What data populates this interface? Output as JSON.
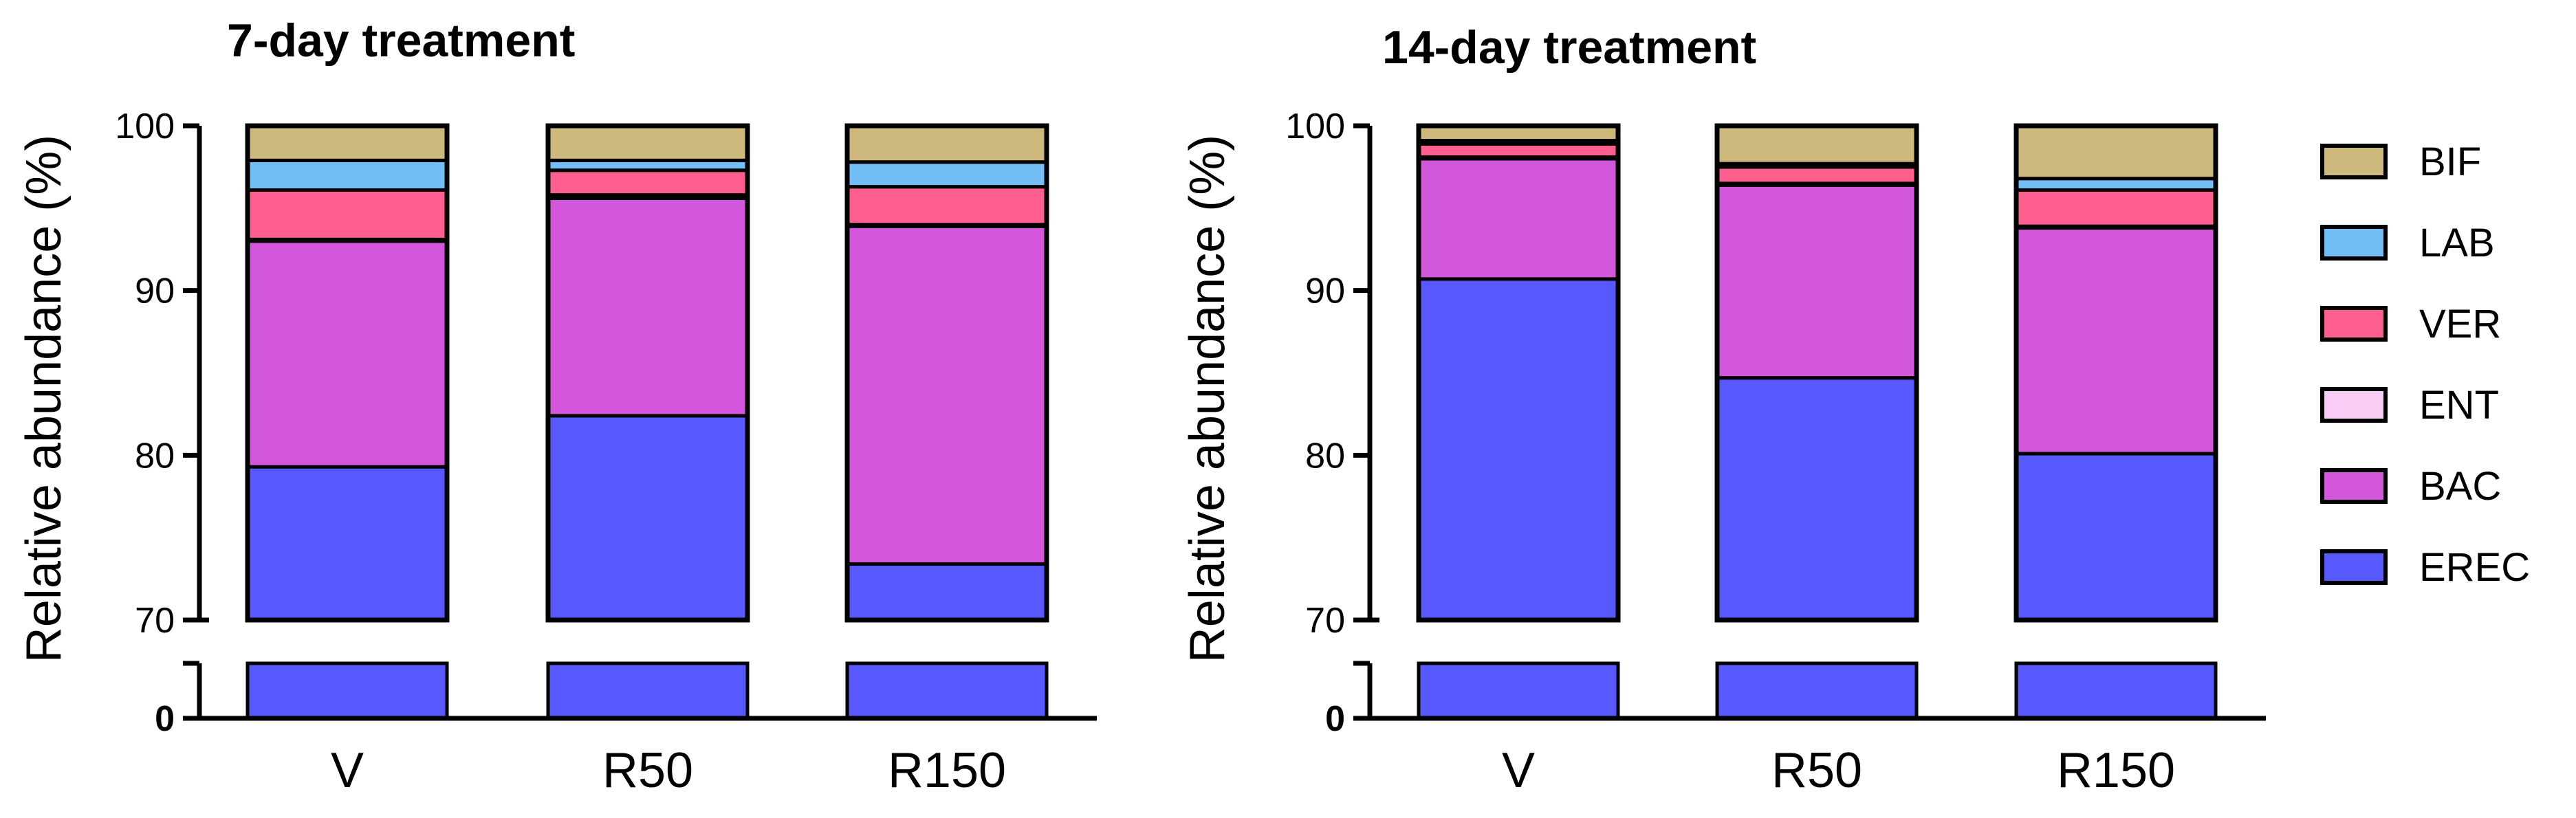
{
  "chart_data": [
    {
      "type": "bar",
      "stacked": true,
      "axis_break": true,
      "title": "7-day treatment",
      "xlabel": "",
      "ylabel": "Relative abundance (%)",
      "ylim": [
        70,
        100
      ],
      "y_break_below": 70,
      "yticks": [
        "100",
        "90",
        "80",
        "70"
      ],
      "ybreak_tick": "0",
      "categories": [
        "V",
        "R50",
        "R150"
      ],
      "series": [
        {
          "name": "EREC",
          "values": [
            79.3,
            82.4,
            73.4
          ]
        },
        {
          "name": "BAC",
          "values": [
            13.7,
            13.2,
            20.5
          ]
        },
        {
          "name": "ENT",
          "values": [
            0.1,
            0.2,
            0.1
          ]
        },
        {
          "name": "VER",
          "values": [
            3.0,
            1.5,
            2.3
          ]
        },
        {
          "name": "LAB",
          "values": [
            1.8,
            0.6,
            1.5
          ]
        },
        {
          "name": "BIF",
          "values": [
            2.1,
            2.1,
            2.2
          ]
        }
      ]
    },
    {
      "type": "bar",
      "stacked": true,
      "axis_break": true,
      "title": "14-day treatment",
      "xlabel": "",
      "ylabel": "Relative abundance (%)",
      "ylim": [
        70,
        100
      ],
      "y_break_below": 70,
      "yticks": [
        "100",
        "90",
        "80",
        "70"
      ],
      "ybreak_tick": "0",
      "categories": [
        "V",
        "R50",
        "R150"
      ],
      "series": [
        {
          "name": "EREC",
          "values": [
            90.7,
            84.7,
            80.1
          ]
        },
        {
          "name": "BAC",
          "values": [
            7.3,
            11.7,
            13.7
          ]
        },
        {
          "name": "ENT",
          "values": [
            0.1,
            0.1,
            0.1
          ]
        },
        {
          "name": "VER",
          "values": [
            0.8,
            1.0,
            2.2
          ]
        },
        {
          "name": "LAB",
          "values": [
            0.2,
            0.2,
            0.7
          ]
        },
        {
          "name": "BIF",
          "values": [
            0.9,
            2.3,
            3.2
          ]
        }
      ]
    }
  ],
  "legend": {
    "items": [
      {
        "name": "BIF",
        "color": "#CDB97C"
      },
      {
        "name": "LAB",
        "color": "#74BEF7"
      },
      {
        "name": "VER",
        "color": "#FF5F8F"
      },
      {
        "name": "ENT",
        "color": "#F8CCF5"
      },
      {
        "name": "BAC",
        "color": "#D257DC"
      },
      {
        "name": "EREC",
        "color": "#5759FF"
      }
    ]
  },
  "colors": {
    "EREC": "#5759FF",
    "BAC": "#D257DC",
    "ENT": "#F8CCF5",
    "VER": "#FF5F8F",
    "LAB": "#74BEF7",
    "BIF": "#CDB97C"
  }
}
